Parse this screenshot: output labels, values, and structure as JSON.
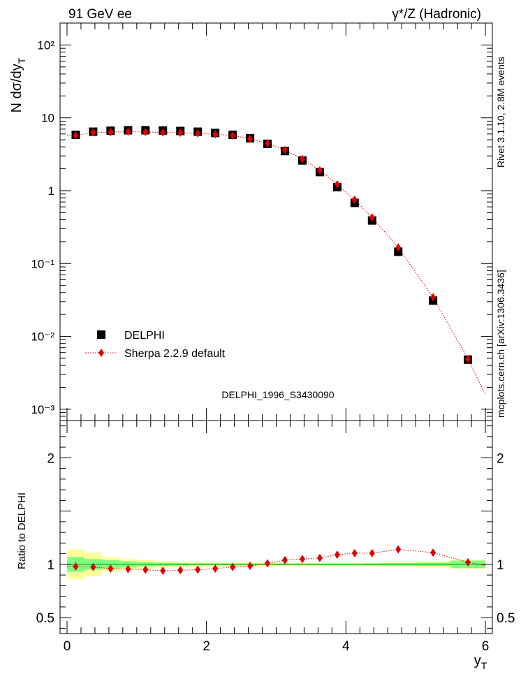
{
  "header": {
    "left_label": "91 GeV ee",
    "right_label": "γ*/Z (Hadronic)"
  },
  "side_labels": {
    "rivet": "Rivet 3.1.10,  2.8M events",
    "mcplots": "mcplots.cern.ch [arXiv:1306.3436]"
  },
  "watermark": "DELPHI_1996_S3430090",
  "legend": {
    "data_label": "DELPHI",
    "mc_label": "Sherpa 2.2.9 default"
  },
  "colors": {
    "data": "#000000",
    "mc": "#e00000",
    "band_outer": "#ffff99",
    "band_inner": "#80ff80",
    "ref_line": "#009900"
  },
  "chart_data": [
    {
      "type": "scatter",
      "title": "",
      "xlabel": "y_T",
      "ylabel": "N dσ/dy_T",
      "yscale": "log",
      "xlim": [
        -0.1,
        6.1
      ],
      "ylim": [
        0.0007,
        200
      ],
      "ytick_labels": [
        "10⁻³",
        "10⁻²",
        "10⁻¹",
        "1",
        "10",
        "10²"
      ],
      "series": [
        {
          "name": "DELPHI",
          "marker": "square",
          "x": [
            0.125,
            0.375,
            0.625,
            0.875,
            1.125,
            1.375,
            1.625,
            1.875,
            2.125,
            2.375,
            2.625,
            2.875,
            3.125,
            3.375,
            3.625,
            3.875,
            4.125,
            4.375,
            4.75,
            5.25,
            5.75
          ],
          "values": [
            5.85,
            6.45,
            6.65,
            6.75,
            6.75,
            6.7,
            6.6,
            6.45,
            6.2,
            5.85,
            5.25,
            4.4,
            3.5,
            2.6,
            1.8,
            1.12,
            0.68,
            0.39,
            0.145,
            0.031,
            0.0048
          ]
        },
        {
          "name": "Sherpa 2.2.9 default",
          "marker": "diamond",
          "x": [
            0.125,
            0.375,
            0.625,
            0.875,
            1.125,
            1.375,
            1.625,
            1.875,
            2.125,
            2.375,
            2.625,
            2.875,
            3.125,
            3.375,
            3.625,
            3.875,
            4.125,
            4.375,
            4.75,
            5.25,
            5.75
          ],
          "values": [
            5.74,
            6.3,
            6.37,
            6.45,
            6.4,
            6.3,
            6.25,
            6.13,
            5.95,
            5.7,
            5.17,
            4.45,
            3.63,
            2.73,
            1.9,
            1.22,
            0.75,
            0.43,
            0.166,
            0.0345,
            0.0049
          ]
        }
      ]
    },
    {
      "type": "scatter",
      "xlabel": "y_T",
      "ylabel": "Ratio to DELPHI",
      "xlim": [
        -0.1,
        6.1
      ],
      "ylim": [
        0.35,
        2.35
      ],
      "xtick_labels": [
        "0",
        "2",
        "4",
        "6"
      ],
      "ytick_labels": [
        "0.5",
        "1",
        "2"
      ],
      "uncertainty_bands": {
        "bin_edges": [
          0.0,
          0.25,
          0.5,
          0.75,
          1.0,
          1.25,
          1.5,
          1.75,
          2.0,
          2.25,
          2.5,
          2.75,
          3.0,
          3.25,
          3.5,
          3.75,
          4.0,
          4.25,
          4.5,
          5.0,
          5.5,
          6.0
        ],
        "outer_halfwidth": [
          0.14,
          0.11,
          0.07,
          0.05,
          0.04,
          0.03,
          0.025,
          0.025,
          0.02,
          0.02,
          0.02,
          0.02,
          0.015,
          0.015,
          0.015,
          0.015,
          0.015,
          0.015,
          0.02,
          0.03,
          0.04
        ],
        "inner_halfwidth": [
          0.07,
          0.05,
          0.04,
          0.03,
          0.02,
          0.015,
          0.012,
          0.01,
          0.01,
          0.01,
          0.008,
          0.008,
          0.008,
          0.008,
          0.008,
          0.008,
          0.008,
          0.01,
          0.012,
          0.015,
          0.035
        ]
      },
      "series": [
        {
          "name": "Sherpa 2.2.9 default / DELPHI",
          "x": [
            0.125,
            0.375,
            0.625,
            0.875,
            1.125,
            1.375,
            1.625,
            1.875,
            2.125,
            2.375,
            2.625,
            2.875,
            3.125,
            3.375,
            3.625,
            3.875,
            4.125,
            4.375,
            4.75,
            5.25,
            5.75
          ],
          "values": [
            0.98,
            0.975,
            0.96,
            0.955,
            0.95,
            0.94,
            0.945,
            0.95,
            0.96,
            0.975,
            0.985,
            1.01,
            1.04,
            1.05,
            1.06,
            1.09,
            1.105,
            1.105,
            1.14,
            1.11,
            1.02
          ]
        }
      ]
    }
  ]
}
